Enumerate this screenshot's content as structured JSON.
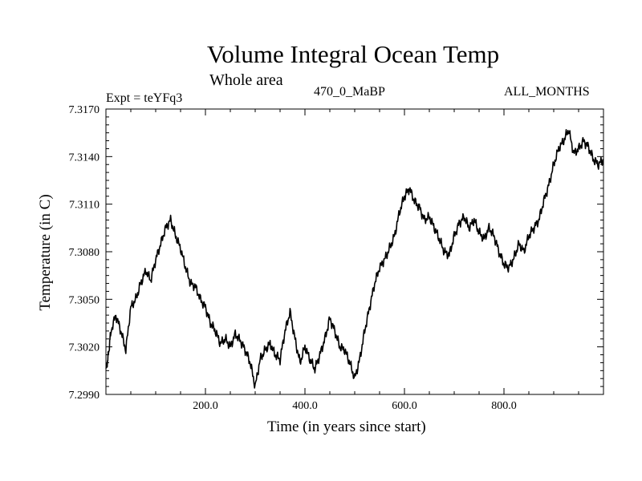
{
  "chart_data": {
    "type": "line",
    "title": "Volume Integral Ocean Temp",
    "subtitle": "Whole area",
    "experiment": "Expt = teYFq3",
    "period": "470_0_MaBP",
    "season": "ALL_MONTHS",
    "xlabel": "Time (in years since start)",
    "ylabel": "Temperature (in C)",
    "xlim": [
      0,
      1000
    ],
    "ylim": [
      7.299,
      7.317
    ],
    "x_ticks": [
      200,
      400,
      600,
      800
    ],
    "x_tick_labels": [
      "200.0",
      "400.0",
      "600.0",
      "800.0"
    ],
    "y_ticks": [
      7.299,
      7.302,
      7.305,
      7.308,
      7.311,
      7.314,
      7.317
    ],
    "y_tick_labels": [
      "7.2990",
      "7.3020",
      "7.3050",
      "7.3080",
      "7.3110",
      "7.3140",
      "7.3170"
    ],
    "grid": false,
    "series": [
      {
        "name": "Volume Integral Ocean Temp",
        "color": "#000000",
        "x": [
          0,
          5,
          10,
          20,
          30,
          40,
          50,
          60,
          70,
          80,
          90,
          100,
          110,
          120,
          130,
          140,
          150,
          160,
          170,
          180,
          190,
          200,
          210,
          220,
          230,
          240,
          250,
          260,
          270,
          280,
          290,
          300,
          310,
          320,
          330,
          340,
          350,
          360,
          370,
          380,
          390,
          400,
          410,
          420,
          430,
          440,
          450,
          460,
          470,
          480,
          490,
          500,
          510,
          520,
          530,
          540,
          550,
          560,
          570,
          580,
          590,
          600,
          610,
          620,
          630,
          640,
          650,
          660,
          670,
          680,
          690,
          700,
          710,
          720,
          730,
          740,
          750,
          760,
          770,
          780,
          790,
          800,
          810,
          820,
          830,
          840,
          850,
          860,
          870,
          880,
          890,
          900,
          910,
          920,
          930,
          940,
          950,
          960,
          970,
          980,
          990,
          1000
        ],
        "values": [
          7.3005,
          7.3015,
          7.303,
          7.304,
          7.303,
          7.3018,
          7.3045,
          7.305,
          7.306,
          7.3068,
          7.3062,
          7.3075,
          7.3085,
          7.3095,
          7.31,
          7.309,
          7.3082,
          7.307,
          7.306,
          7.3058,
          7.305,
          7.3045,
          7.3035,
          7.303,
          7.3022,
          7.3025,
          7.302,
          7.3028,
          7.3024,
          7.3018,
          7.301,
          7.2995,
          7.3012,
          7.3018,
          7.3022,
          7.3015,
          7.3012,
          7.303,
          7.3042,
          7.3025,
          7.301,
          7.302,
          7.3012,
          7.3006,
          7.3015,
          7.3025,
          7.3038,
          7.303,
          7.302,
          7.3018,
          7.301,
          7.3,
          7.3012,
          7.303,
          7.3045,
          7.306,
          7.307,
          7.3075,
          7.3082,
          7.309,
          7.3105,
          7.3115,
          7.312,
          7.3112,
          7.3108,
          7.31,
          7.3102,
          7.3095,
          7.3088,
          7.308,
          7.3078,
          7.309,
          7.3098,
          7.3102,
          7.3095,
          7.31,
          7.3092,
          7.3088,
          7.3095,
          7.309,
          7.308,
          7.3072,
          7.307,
          7.3076,
          7.3085,
          7.308,
          7.309,
          7.3095,
          7.31,
          7.3112,
          7.3122,
          7.3135,
          7.3145,
          7.315,
          7.3157,
          7.3142,
          7.3145,
          7.315,
          7.3146,
          7.3138,
          7.3135,
          7.3138
        ]
      }
    ]
  }
}
